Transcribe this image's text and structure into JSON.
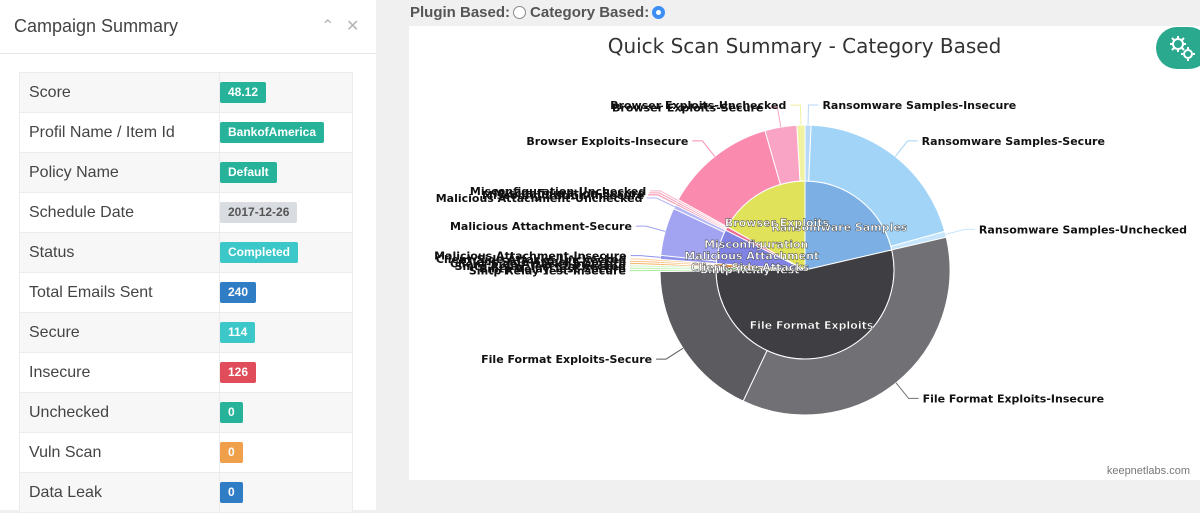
{
  "panel": {
    "title": "Campaign Summary"
  },
  "summary_rows": [
    {
      "key": "Score",
      "value": "48.12",
      "color": "#26b39a"
    },
    {
      "key": "Profil Name / Item Id",
      "value": "BankofAmerica",
      "color": "#26b39a"
    },
    {
      "key": "Policy Name",
      "value": "Default",
      "color": "#26b39a"
    },
    {
      "key": "Schedule Date",
      "value": "2017-12-26",
      "color": "#d9dde2",
      "text_color": "#555555"
    },
    {
      "key": "Status",
      "value": "Completed",
      "color": "#3cc7c9"
    },
    {
      "key": "Total Emails Sent",
      "value": "240",
      "color": "#2f7dc4"
    },
    {
      "key": "Secure",
      "value": "114",
      "color": "#3cc7c9"
    },
    {
      "key": "Insecure",
      "value": "126",
      "color": "#e14c5a"
    },
    {
      "key": "Unchecked",
      "value": "0",
      "color": "#26b39a"
    },
    {
      "key": "Vuln Scan",
      "value": "0",
      "color": "#f0a04b"
    },
    {
      "key": "Data Leak",
      "value": "0",
      "color": "#2f7dc4"
    }
  ],
  "mode": {
    "plugin_label": "Plugin Based:",
    "category_label": "Category Based:",
    "selected": "category"
  },
  "fab_icon": "settings-gears-icon",
  "chart_data": {
    "type": "pie",
    "title": "Quick Scan Summary - Category Based",
    "credits": "keepnetlabs.com",
    "inner": [
      {
        "name": "Ransomware Samples",
        "value": 48,
        "color": "#7cb0e5"
      },
      {
        "name": "File Format Exploits",
        "value": 120,
        "color": "#3e3e43"
      },
      {
        "name": "Smtp Relay Test",
        "value": 1.5,
        "color": "#8ee07a"
      },
      {
        "name": "Client-Side Attacks",
        "value": 1.5,
        "color": "#f5a044"
      },
      {
        "name": "Malicious Attachment",
        "value": 14,
        "color": "#8083e3"
      },
      {
        "name": "Misconfiguration",
        "value": 1.5,
        "color": "#ef6a91"
      },
      {
        "name": "Browser Exploits",
        "value": 38,
        "color": "#e0e35a"
      }
    ],
    "outer": [
      {
        "name": "Ransomware Samples-Insecure",
        "value": 1.5,
        "color": "#b8d8fa"
      },
      {
        "name": "Ransomware Samples-Secure",
        "value": 45,
        "color": "#a2d4f8"
      },
      {
        "name": "Ransomware Samples-Unchecked",
        "value": 1.5,
        "color": "#c7e6fb"
      },
      {
        "name": "File Format Exploits-Insecure",
        "value": 80,
        "color": "#717175"
      },
      {
        "name": "File Format Exploits-Secure",
        "value": 40,
        "color": "#5b5b60"
      },
      {
        "name": "Smtp Relay Test-Insecure",
        "value": 0.5,
        "color": "#a8ec96"
      },
      {
        "name": "Smtp Relay Test-Secure",
        "value": 0.5,
        "color": "#bdf2ae"
      },
      {
        "name": "Smtp Relay Test-Unchecked",
        "value": 0.5,
        "color": "#d0f6c5"
      },
      {
        "name": "Client-Side Attacks-Insecure",
        "value": 0.5,
        "color": "#f8b063"
      },
      {
        "name": "Client-Side Attacks-Secure",
        "value": 0.5,
        "color": "#f9c080"
      },
      {
        "name": "Client-Side Attacks-Unchecked",
        "value": 0.5,
        "color": "#fbcf9c"
      },
      {
        "name": "Malicious Attachment-Insecure",
        "value": 1,
        "color": "#9092ec"
      },
      {
        "name": "Malicious Attachment-Secure",
        "value": 12,
        "color": "#a2a4f2"
      },
      {
        "name": "Malicious Attachment-Unchecked",
        "value": 1,
        "color": "#b5b6f6"
      },
      {
        "name": "Misconfiguration-Insecure",
        "value": 0.5,
        "color": "#f28aa8"
      },
      {
        "name": "Misconfiguration-Secure",
        "value": 0.5,
        "color": "#f59cb6"
      },
      {
        "name": "Misconfiguration-Unchecked",
        "value": 0.5,
        "color": "#f8afc4"
      },
      {
        "name": "Browser Exploits-Insecure",
        "value": 28,
        "color": "#fb8aaf"
      },
      {
        "name": "Browser Exploits-Secure",
        "value": 8,
        "color": "#f9a4c4"
      },
      {
        "name": "Browser Exploits-Unchecked",
        "value": 2,
        "color": "#f1f2a0"
      }
    ]
  }
}
